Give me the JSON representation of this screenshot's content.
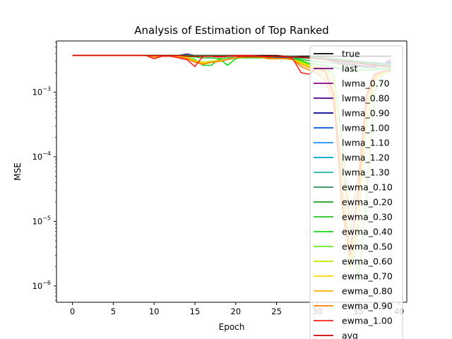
{
  "chart_data": {
    "type": "line",
    "title": "Analysis of Estimation of Top Ranked",
    "xlabel": "Epoch",
    "ylabel": "MSE",
    "xlim": [
      -1.95,
      40.95
    ],
    "ylim": [
      5.6e-07,
      0.0062
    ],
    "yscale": "log",
    "grid": false,
    "legend_position": "upper right",
    "x_ticks": [
      0,
      5,
      10,
      15,
      20,
      25,
      30,
      35,
      40
    ],
    "y_ticks": [
      {
        "value": 1e-06,
        "base": "10",
        "exp": "−6"
      },
      {
        "value": 1e-05,
        "base": "10",
        "exp": "−5"
      },
      {
        "value": 0.0001,
        "base": "10",
        "exp": "−4"
      },
      {
        "value": 0.001,
        "base": "10",
        "exp": "−3"
      }
    ],
    "series": [
      {
        "name": "true",
        "color": "#000000",
        "visible_in_legend": true,
        "values": [
          0.0037,
          0.0037,
          0.0037,
          0.0037,
          0.0037,
          0.0037,
          0.0037,
          0.0037,
          0.0037,
          0.0037,
          0.0037,
          0.0037,
          0.0037,
          0.0037,
          0.0037,
          0.0037,
          0.0037,
          0.0037,
          0.0037,
          0.0037,
          0.0037,
          0.0037,
          0.0037,
          0.0037,
          0.0037,
          0.0037,
          0.0036,
          0.0036,
          0.0036,
          0.0036,
          0.0036,
          0.0036,
          0.0036,
          0.0036,
          0.0036,
          0.0036,
          0.0036,
          0.0036,
          0.0036,
          0.0036
        ]
      },
      {
        "name": "last",
        "color": "#800080",
        "visible_in_legend": true,
        "values": [
          0.0037,
          0.0037,
          0.0037,
          0.0037,
          0.0037,
          0.0037,
          0.0037,
          0.0037,
          0.0037,
          0.0037,
          0.0037,
          0.0037,
          0.0037,
          0.0037,
          0.0039,
          0.0037,
          0.0036,
          0.0036,
          0.0035,
          0.0036,
          0.0036,
          0.0035,
          0.0035,
          0.0035,
          0.0036,
          0.0034,
          0.0034,
          0.0034,
          0.0034,
          0.0034,
          0.0033,
          0.0032,
          0.003,
          0.0028,
          0.0027,
          0.0026,
          0.0025,
          0.0025,
          0.0026,
          0.0033
        ]
      },
      {
        "name": "lwma_0.70",
        "color": "#8b008b",
        "visible_in_legend": true,
        "values": [
          0.0037,
          0.0037,
          0.0037,
          0.0037,
          0.0037,
          0.0037,
          0.0037,
          0.0037,
          0.0037,
          0.0037,
          0.0037,
          0.0037,
          0.0037,
          0.0037,
          0.0038,
          0.0037,
          0.0037,
          0.0036,
          0.0036,
          0.0036,
          0.0036,
          0.0035,
          0.0035,
          0.0035,
          0.0035,
          0.0035,
          0.0034,
          0.0034,
          0.0034,
          0.0034,
          0.0033,
          0.0032,
          0.0031,
          0.003,
          0.0029,
          0.0028,
          0.0027,
          0.0026,
          0.0026,
          0.003
        ]
      },
      {
        "name": "lwma_0.80",
        "color": "#4b0082",
        "visible_in_legend": true,
        "values": [
          0.0037,
          0.0037,
          0.0037,
          0.0037,
          0.0037,
          0.0037,
          0.0037,
          0.0037,
          0.0037,
          0.0037,
          0.0037,
          0.0037,
          0.0037,
          0.0037,
          0.0038,
          0.0037,
          0.0037,
          0.0036,
          0.0036,
          0.0036,
          0.0036,
          0.0035,
          0.0035,
          0.0035,
          0.0035,
          0.0035,
          0.0034,
          0.0034,
          0.0034,
          0.0034,
          0.0033,
          0.0032,
          0.0031,
          0.003,
          0.0029,
          0.0028,
          0.0027,
          0.0026,
          0.0026,
          0.0029
        ]
      },
      {
        "name": "lwma_0.90",
        "color": "#00008b",
        "visible_in_legend": true,
        "values": [
          0.0037,
          0.0037,
          0.0037,
          0.0037,
          0.0037,
          0.0037,
          0.0037,
          0.0037,
          0.0037,
          0.0037,
          0.0037,
          0.0037,
          0.0037,
          0.0037,
          0.0038,
          0.0037,
          0.0037,
          0.0036,
          0.0036,
          0.0036,
          0.0036,
          0.0036,
          0.0035,
          0.0035,
          0.0035,
          0.0035,
          0.0034,
          0.0034,
          0.0034,
          0.0034,
          0.0033,
          0.0033,
          0.0031,
          0.003,
          0.0029,
          0.0028,
          0.0028,
          0.0027,
          0.0026,
          0.0028
        ]
      },
      {
        "name": "lwma_1.00",
        "color": "#0055dd",
        "visible_in_legend": true,
        "values": [
          0.0037,
          0.0037,
          0.0037,
          0.0037,
          0.0037,
          0.0037,
          0.0037,
          0.0037,
          0.0037,
          0.0037,
          0.0037,
          0.0037,
          0.0037,
          0.0037,
          0.0038,
          0.0037,
          0.0037,
          0.0036,
          0.0036,
          0.0036,
          0.0036,
          0.0036,
          0.0035,
          0.0035,
          0.0035,
          0.0035,
          0.0034,
          0.0034,
          0.0034,
          0.0034,
          0.0033,
          0.0033,
          0.0032,
          0.0031,
          0.003,
          0.0029,
          0.0028,
          0.0027,
          0.0027,
          0.0028
        ]
      },
      {
        "name": "lwma_1.10",
        "color": "#1e90ff",
        "visible_in_legend": true,
        "values": [
          0.0037,
          0.0037,
          0.0037,
          0.0037,
          0.0037,
          0.0037,
          0.0037,
          0.0037,
          0.0037,
          0.0037,
          0.0037,
          0.0037,
          0.0037,
          0.0037,
          0.0037,
          0.0037,
          0.0037,
          0.0036,
          0.0036,
          0.0036,
          0.0036,
          0.0036,
          0.0035,
          0.0035,
          0.0035,
          0.0035,
          0.0035,
          0.0034,
          0.0034,
          0.0034,
          0.0033,
          0.0033,
          0.0032,
          0.0031,
          0.003,
          0.0029,
          0.0029,
          0.0028,
          0.0027,
          0.0027
        ]
      },
      {
        "name": "lwma_1.20",
        "color": "#00a0c8",
        "visible_in_legend": true,
        "values": [
          0.0037,
          0.0037,
          0.0037,
          0.0037,
          0.0037,
          0.0037,
          0.0037,
          0.0037,
          0.0037,
          0.0037,
          0.0037,
          0.0037,
          0.0037,
          0.0037,
          0.0037,
          0.0037,
          0.0037,
          0.0036,
          0.0036,
          0.0036,
          0.0036,
          0.0036,
          0.0035,
          0.0035,
          0.0035,
          0.0035,
          0.0035,
          0.0034,
          0.0034,
          0.0034,
          0.0033,
          0.0033,
          0.0032,
          0.0031,
          0.0031,
          0.003,
          0.0029,
          0.0028,
          0.0028,
          0.0027
        ]
      },
      {
        "name": "lwma_1.30",
        "color": "#20b2aa",
        "visible_in_legend": true,
        "values": [
          0.0037,
          0.0037,
          0.0037,
          0.0037,
          0.0037,
          0.0037,
          0.0037,
          0.0037,
          0.0037,
          0.0037,
          0.0037,
          0.0037,
          0.0037,
          0.0037,
          0.0037,
          0.0037,
          0.0037,
          0.0037,
          0.0036,
          0.0036,
          0.0036,
          0.0036,
          0.0035,
          0.0035,
          0.0035,
          0.0035,
          0.0035,
          0.0034,
          0.0034,
          0.0034,
          0.0034,
          0.0033,
          0.0032,
          0.0032,
          0.0031,
          0.003,
          0.0029,
          0.0029,
          0.0028,
          0.0027
        ]
      },
      {
        "name": "ewma_0.10",
        "color": "#2e8b57",
        "visible_in_legend": true,
        "values": [
          0.0037,
          0.0037,
          0.0037,
          0.0037,
          0.0037,
          0.0037,
          0.0037,
          0.0037,
          0.0037,
          0.0037,
          0.0037,
          0.0037,
          0.0037,
          0.0037,
          0.0037,
          0.0037,
          0.0037,
          0.0037,
          0.0037,
          0.0037,
          0.0036,
          0.0036,
          0.0036,
          0.0036,
          0.0036,
          0.0036,
          0.0036,
          0.0036,
          0.0035,
          0.0035,
          0.0035,
          0.0034,
          0.0033,
          0.0032,
          0.0031,
          0.003,
          0.0029,
          0.0028,
          0.0027,
          0.0026
        ]
      },
      {
        "name": "ewma_0.20",
        "color": "#1a9e1a",
        "visible_in_legend": true,
        "values": [
          0.0037,
          0.0037,
          0.0037,
          0.0037,
          0.0037,
          0.0037,
          0.0037,
          0.0037,
          0.0037,
          0.0037,
          0.0037,
          0.0037,
          0.0037,
          0.0037,
          0.0037,
          0.0036,
          0.0036,
          0.0036,
          0.0036,
          0.0036,
          0.0036,
          0.0036,
          0.0036,
          0.0035,
          0.0035,
          0.0035,
          0.0035,
          0.0035,
          0.0034,
          0.0034,
          0.0034,
          0.0033,
          0.0032,
          0.0031,
          0.003,
          0.0029,
          0.0028,
          0.0027,
          0.0026,
          0.0025
        ]
      },
      {
        "name": "ewma_0.30",
        "color": "#22c222",
        "visible_in_legend": true,
        "values": [
          0.0037,
          0.0037,
          0.0037,
          0.0037,
          0.0037,
          0.0037,
          0.0037,
          0.0037,
          0.0037,
          0.0037,
          0.0037,
          0.0037,
          0.0037,
          0.0037,
          0.0036,
          0.0035,
          0.0034,
          0.0034,
          0.0033,
          0.0034,
          0.0034,
          0.0034,
          0.0034,
          0.0034,
          0.0034,
          0.0033,
          0.0033,
          0.0033,
          0.0032,
          0.0031,
          0.003,
          0.0029,
          0.0028,
          0.0027,
          0.0026,
          0.0025,
          0.0024,
          0.0024,
          0.0023,
          0.0023
        ]
      },
      {
        "name": "ewma_0.40",
        "color": "#11dd11",
        "visible_in_legend": true,
        "values": [
          0.0037,
          0.0037,
          0.0037,
          0.0037,
          0.0037,
          0.0037,
          0.0037,
          0.0037,
          0.0037,
          0.0037,
          0.0037,
          0.0037,
          0.0037,
          0.0037,
          0.0035,
          0.0032,
          0.0026,
          0.0026,
          0.0033,
          0.0026,
          0.0033,
          0.0035,
          0.0035,
          0.0035,
          0.0033,
          0.0033,
          0.0033,
          0.0033,
          0.0031,
          0.0028,
          0.0027,
          0.0026,
          0.0024,
          0.0023,
          0.0022,
          0.0022,
          0.0022,
          0.0022,
          0.0023,
          0.0024
        ]
      },
      {
        "name": "ewma_0.50",
        "color": "#66ee22",
        "visible_in_legend": true,
        "values": [
          0.0037,
          0.0037,
          0.0037,
          0.0037,
          0.0037,
          0.0037,
          0.0037,
          0.0037,
          0.0037,
          0.0037,
          0.0036,
          0.0036,
          0.0036,
          0.0036,
          0.0035,
          0.0031,
          0.0029,
          0.003,
          0.0031,
          0.0032,
          0.0034,
          0.0035,
          0.0035,
          0.0035,
          0.0033,
          0.0033,
          0.0033,
          0.0032,
          0.003,
          0.0027,
          0.0025,
          0.0023,
          0.0019,
          0.0002,
          1e-05,
          1.2e-06,
          2e-05,
          0.001,
          0.0019,
          0.0021
        ]
      },
      {
        "name": "ewma_0.60",
        "color": "#c8e600",
        "visible_in_legend": true,
        "values": [
          0.0037,
          0.0037,
          0.0037,
          0.0037,
          0.0037,
          0.0037,
          0.0037,
          0.0037,
          0.0037,
          0.0037,
          0.0036,
          0.0036,
          0.0036,
          0.0036,
          0.0035,
          0.0031,
          0.0029,
          0.003,
          0.0031,
          0.0032,
          0.0034,
          0.0035,
          0.0035,
          0.0035,
          0.0033,
          0.0033,
          0.0033,
          0.0032,
          0.0029,
          0.0026,
          0.0024,
          0.0022,
          0.0015,
          4e-05,
          1.8e-06,
          8e-06,
          0.0003,
          0.0015,
          0.002,
          0.0022
        ]
      },
      {
        "name": "ewma_0.70",
        "color": "#ffd700",
        "visible_in_legend": true,
        "values": [
          0.0037,
          0.0037,
          0.0037,
          0.0037,
          0.0037,
          0.0037,
          0.0037,
          0.0037,
          0.0037,
          0.0037,
          0.0036,
          0.0036,
          0.0036,
          0.0036,
          0.0034,
          0.003,
          0.0028,
          0.0029,
          0.003,
          0.0032,
          0.0034,
          0.0035,
          0.0035,
          0.0035,
          0.0033,
          0.0033,
          0.0033,
          0.0032,
          0.0028,
          0.0025,
          0.0023,
          0.002,
          0.001,
          1.5e-05,
          2.5e-06,
          1e-05,
          0.0005,
          0.0016,
          0.002,
          0.0022
        ]
      },
      {
        "name": "ewma_0.80",
        "color": "#ffb000",
        "visible_in_legend": true,
        "values": [
          0.0037,
          0.0037,
          0.0037,
          0.0037,
          0.0037,
          0.0037,
          0.0037,
          0.0037,
          0.0037,
          0.0037,
          0.0036,
          0.0036,
          0.0036,
          0.0035,
          0.0034,
          0.003,
          0.0027,
          0.0029,
          0.003,
          0.0032,
          0.0034,
          0.0035,
          0.0035,
          0.0035,
          0.0033,
          0.0033,
          0.0033,
          0.0032,
          0.0027,
          0.0024,
          0.0022,
          0.0018,
          0.0008,
          4e-05,
          4e-06,
          2e-05,
          0.0006,
          0.0017,
          0.0021,
          0.0022
        ]
      },
      {
        "name": "ewma_0.90",
        "color": "#ff8000",
        "visible_in_legend": true,
        "values": [
          0.0037,
          0.0037,
          0.0037,
          0.0037,
          0.0037,
          0.0037,
          0.0037,
          0.0037,
          0.0037,
          0.0037,
          0.0035,
          0.0036,
          0.0036,
          0.0035,
          0.0033,
          0.0029,
          0.0027,
          0.0029,
          0.003,
          0.0032,
          0.0034,
          0.0035,
          0.0035,
          0.0035,
          0.0033,
          0.0033,
          0.0033,
          0.0032,
          0.0025,
          0.0022,
          0.002,
          0.0015,
          0.0006,
          8e-05,
          1e-05,
          5e-05,
          0.0008,
          0.0018,
          0.0021,
          0.0022
        ]
      },
      {
        "name": "ewma_1.00",
        "color": "#ff2020",
        "visible_in_legend": true,
        "values": [
          0.0037,
          0.0037,
          0.0037,
          0.0037,
          0.0037,
          0.0037,
          0.0037,
          0.0037,
          0.0037,
          0.0037,
          0.0033,
          0.0036,
          0.0036,
          0.0034,
          0.0032,
          0.0025,
          0.0036,
          0.0036,
          0.0035,
          0.0036,
          0.0037,
          0.0037,
          0.0037,
          0.0036,
          0.0035,
          0.0036,
          0.0036,
          0.0033,
          0.002,
          0.0019,
          0.0024,
          0.0021,
          0.0009,
          2e-05,
          3e-06,
          3e-05,
          0.0009,
          0.0019,
          0.0021,
          0.0022
        ]
      },
      {
        "name": "avg",
        "color": "#cc0000",
        "visible_in_legend": true,
        "values": [
          0.0037,
          0.0037,
          0.0037,
          0.0037,
          0.0037,
          0.0037,
          0.0037,
          0.0037,
          0.0037,
          0.0037,
          0.0037,
          0.0037,
          0.0037,
          0.0037,
          0.0036,
          0.0036,
          0.0036,
          0.0036,
          0.0036,
          0.0036,
          0.0036,
          0.0036,
          0.0036,
          0.0036,
          0.0036,
          0.0036,
          0.0035,
          0.0035,
          0.0035,
          0.0034,
          0.0033,
          0.0032,
          0.0031,
          0.003,
          0.0029,
          0.0028,
          0.0027,
          0.0026,
          0.0025,
          0.0025
        ]
      }
    ]
  }
}
